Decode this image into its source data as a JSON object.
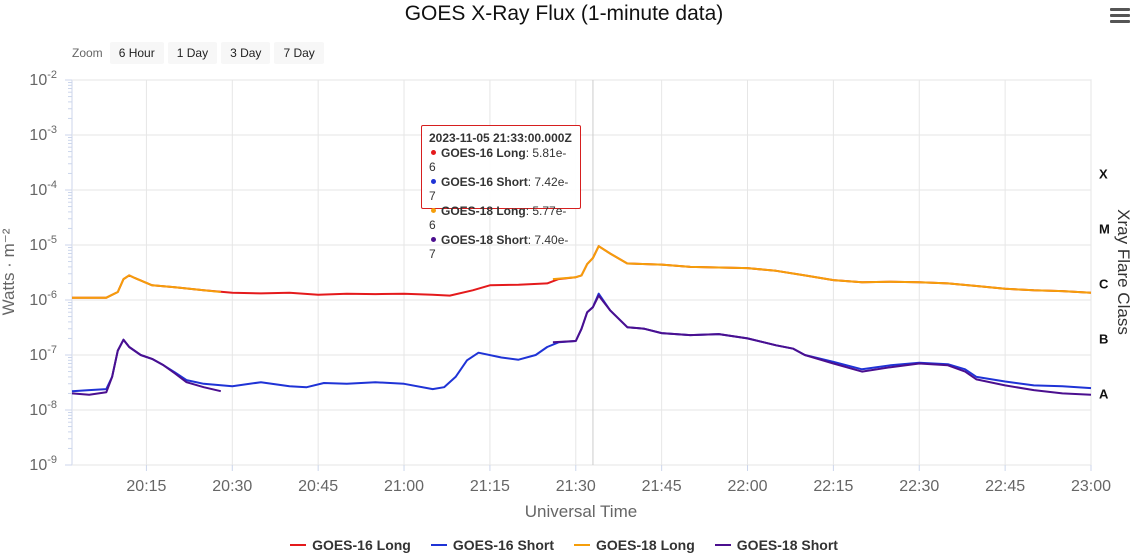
{
  "title": "GOES X-Ray Flux (1-minute data)",
  "menu_icon": "hamburger-menu-icon",
  "zoom": {
    "label": "Zoom",
    "buttons": [
      "6 Hour",
      "1 Day",
      "3 Day",
      "7 Day"
    ]
  },
  "tooltip": {
    "time": "2023-11-05 21:33:00.000Z",
    "rows": [
      {
        "series": "GOES-16 Long",
        "value": "5.81e-6",
        "color": "#e41a1c"
      },
      {
        "series": "GOES-16 Short",
        "value": "7.42e-7",
        "color": "#1f33d6"
      },
      {
        "series": "GOES-18 Long",
        "value": "5.77e-6",
        "color": "#f59e0b"
      },
      {
        "series": "GOES-18 Short",
        "value": "7.40e-7",
        "color": "#4b0f8f"
      }
    ]
  },
  "chart_data": {
    "type": "line",
    "title": "GOES X-Ray Flux (1-minute data)",
    "xlabel": "Universal Time",
    "ylabel": "Watts · m⁻²",
    "y2label": "Xray Flare Class",
    "yscale": "log",
    "ylim": [
      1e-09,
      0.01
    ],
    "xlim": [
      "20:02",
      "23:00"
    ],
    "x_ticks": [
      "20:15",
      "20:30",
      "20:45",
      "21:00",
      "21:15",
      "21:30",
      "21:45",
      "22:00",
      "22:15",
      "22:30",
      "22:45",
      "23:00"
    ],
    "y_ticks": [
      {
        "base": "10",
        "exp": "-9"
      },
      {
        "base": "10",
        "exp": "-8"
      },
      {
        "base": "10",
        "exp": "-7"
      },
      {
        "base": "10",
        "exp": "-6"
      },
      {
        "base": "10",
        "exp": "-5"
      },
      {
        "base": "10",
        "exp": "-4"
      },
      {
        "base": "10",
        "exp": "-3"
      },
      {
        "base": "10",
        "exp": "-2"
      }
    ],
    "flare_classes": [
      {
        "label": "A",
        "flux": 1e-08
      },
      {
        "label": "B",
        "flux": 1e-07
      },
      {
        "label": "C",
        "flux": 1e-06
      },
      {
        "label": "M",
        "flux": 1e-05
      },
      {
        "label": "X",
        "flux": 0.0001
      }
    ],
    "crosshair_x": "21:33",
    "series": [
      {
        "name": "GOES-16 Long",
        "color": "#e41a1c",
        "points": [
          [
            "20:02",
            1.1e-06
          ],
          [
            "20:08",
            1.1e-06
          ],
          [
            "20:10",
            1.4e-06
          ],
          [
            "20:11",
            2.4e-06
          ],
          [
            "20:12",
            2.8e-06
          ],
          [
            "20:13",
            2.5e-06
          ],
          [
            "20:16",
            1.85e-06
          ],
          [
            "20:20",
            1.7e-06
          ],
          [
            "20:25",
            1.5e-06
          ],
          [
            "20:30",
            1.35e-06
          ],
          [
            "20:35",
            1.32e-06
          ],
          [
            "20:40",
            1.35e-06
          ],
          [
            "20:45",
            1.25e-06
          ],
          [
            "20:50",
            1.3e-06
          ],
          [
            "20:55",
            1.28e-06
          ],
          [
            "21:00",
            1.3e-06
          ],
          [
            "21:05",
            1.25e-06
          ],
          [
            "21:08",
            1.2e-06
          ],
          [
            "21:12",
            1.5e-06
          ],
          [
            "21:15",
            1.85e-06
          ],
          [
            "21:20",
            1.9e-06
          ],
          [
            "21:25",
            2e-06
          ],
          [
            "21:27",
            2.4e-06
          ],
          [
            "21:30",
            2.6e-06
          ],
          [
            "21:31",
            2.8e-06
          ],
          [
            "21:32",
            4.5e-06
          ],
          [
            "21:33",
            5.81e-06
          ],
          [
            "21:34",
            9.5e-06
          ],
          [
            "21:36",
            7e-06
          ],
          [
            "21:39",
            4.6e-06
          ],
          [
            "21:45",
            4.4e-06
          ],
          [
            "21:50",
            4e-06
          ],
          [
            "21:55",
            3.9e-06
          ],
          [
            "22:00",
            3.8e-06
          ],
          [
            "22:05",
            3.4e-06
          ],
          [
            "22:10",
            2.8e-06
          ],
          [
            "22:15",
            2.3e-06
          ],
          [
            "22:20",
            2.1e-06
          ],
          [
            "22:25",
            2.15e-06
          ],
          [
            "22:30",
            2.1e-06
          ],
          [
            "22:35",
            2e-06
          ],
          [
            "22:40",
            1.8e-06
          ],
          [
            "22:45",
            1.6e-06
          ],
          [
            "22:50",
            1.5e-06
          ],
          [
            "22:55",
            1.45e-06
          ],
          [
            "23:00",
            1.35e-06
          ]
        ]
      },
      {
        "name": "GOES-16 Short",
        "color": "#1f33d6",
        "points": [
          [
            "20:02",
            2.2e-08
          ],
          [
            "20:05",
            2.3e-08
          ],
          [
            "20:08",
            2.4e-08
          ],
          [
            "20:09",
            4e-08
          ],
          [
            "20:10",
            1.2e-07
          ],
          [
            "20:11",
            1.9e-07
          ],
          [
            "20:12",
            1.4e-07
          ],
          [
            "20:14",
            1e-07
          ],
          [
            "20:16",
            8.5e-08
          ],
          [
            "20:18",
            6.5e-08
          ],
          [
            "20:20",
            4.8e-08
          ],
          [
            "20:22",
            3.5e-08
          ],
          [
            "20:25",
            3e-08
          ],
          [
            "20:30",
            2.7e-08
          ],
          [
            "20:35",
            3.2e-08
          ],
          [
            "20:40",
            2.7e-08
          ],
          [
            "20:43",
            2.6e-08
          ],
          [
            "20:46",
            3.1e-08
          ],
          [
            "20:50",
            3e-08
          ],
          [
            "20:55",
            3.2e-08
          ],
          [
            "21:00",
            3e-08
          ],
          [
            "21:05",
            2.4e-08
          ],
          [
            "21:07",
            2.6e-08
          ],
          [
            "21:09",
            4e-08
          ],
          [
            "21:11",
            8e-08
          ],
          [
            "21:13",
            1.1e-07
          ],
          [
            "21:17",
            9e-08
          ],
          [
            "21:20",
            8.2e-08
          ],
          [
            "21:23",
            1e-07
          ],
          [
            "21:25",
            1.4e-07
          ],
          [
            "21:27",
            1.7e-07
          ],
          [
            "21:30",
            1.8e-07
          ],
          [
            "21:31",
            3e-07
          ],
          [
            "21:32",
            6e-07
          ],
          [
            "21:33",
            7.42e-07
          ],
          [
            "21:34",
            1.3e-06
          ],
          [
            "21:36",
            6.5e-07
          ],
          [
            "21:39",
            3.2e-07
          ],
          [
            "21:42",
            3e-07
          ],
          [
            "21:45",
            2.5e-07
          ],
          [
            "21:50",
            2.3e-07
          ],
          [
            "21:55",
            2.4e-07
          ],
          [
            "22:00",
            2e-07
          ],
          [
            "22:05",
            1.5e-07
          ],
          [
            "22:08",
            1.3e-07
          ],
          [
            "22:10",
            1e-07
          ],
          [
            "22:15",
            7.5e-08
          ],
          [
            "22:20",
            5.5e-08
          ],
          [
            "22:25",
            6.5e-08
          ],
          [
            "22:30",
            7.2e-08
          ],
          [
            "22:35",
            6.8e-08
          ],
          [
            "22:38",
            5.5e-08
          ],
          [
            "22:40",
            4e-08
          ],
          [
            "22:45",
            3.3e-08
          ],
          [
            "22:50",
            2.8e-08
          ],
          [
            "22:55",
            2.7e-08
          ],
          [
            "23:00",
            2.5e-08
          ]
        ]
      },
      {
        "name": "GOES-18 Long",
        "color": "#f59e0b",
        "points": [
          [
            "20:02",
            1.1e-06
          ],
          [
            "20:08",
            1.1e-06
          ],
          [
            "20:10",
            1.4e-06
          ],
          [
            "20:11",
            2.4e-06
          ],
          [
            "20:12",
            2.8e-06
          ],
          [
            "20:13",
            2.5e-06
          ],
          [
            "20:16",
            1.85e-06
          ],
          [
            "20:20",
            1.7e-06
          ],
          [
            "20:25",
            1.5e-06
          ],
          [
            "20:28",
            1.4e-06
          ],
          [
            "21:26",
            2.4e-06
          ],
          [
            "21:30",
            2.6e-06
          ],
          [
            "21:31",
            2.8e-06
          ],
          [
            "21:32",
            4.5e-06
          ],
          [
            "21:33",
            5.77e-06
          ],
          [
            "21:34",
            9.5e-06
          ],
          [
            "21:36",
            7e-06
          ],
          [
            "21:39",
            4.6e-06
          ],
          [
            "21:45",
            4.4e-06
          ],
          [
            "21:50",
            4e-06
          ],
          [
            "21:55",
            3.9e-06
          ],
          [
            "22:00",
            3.8e-06
          ],
          [
            "22:05",
            3.4e-06
          ],
          [
            "22:10",
            2.8e-06
          ],
          [
            "22:15",
            2.3e-06
          ],
          [
            "22:20",
            2.1e-06
          ],
          [
            "22:25",
            2.15e-06
          ],
          [
            "22:30",
            2.1e-06
          ],
          [
            "22:35",
            2e-06
          ],
          [
            "22:40",
            1.8e-06
          ],
          [
            "22:45",
            1.6e-06
          ],
          [
            "22:50",
            1.5e-06
          ],
          [
            "22:55",
            1.45e-06
          ],
          [
            "23:00",
            1.35e-06
          ]
        ]
      },
      {
        "name": "GOES-18 Short",
        "color": "#4b0f8f",
        "points": [
          [
            "20:02",
            2e-08
          ],
          [
            "20:05",
            1.9e-08
          ],
          [
            "20:08",
            2.1e-08
          ],
          [
            "20:09",
            4e-08
          ],
          [
            "20:10",
            1.2e-07
          ],
          [
            "20:11",
            1.9e-07
          ],
          [
            "20:12",
            1.4e-07
          ],
          [
            "20:14",
            1e-07
          ],
          [
            "20:16",
            8.5e-08
          ],
          [
            "20:18",
            6.5e-08
          ],
          [
            "20:20",
            4.6e-08
          ],
          [
            "20:22",
            3.2e-08
          ],
          [
            "20:25",
            2.6e-08
          ],
          [
            "20:28",
            2.2e-08
          ],
          [
            "21:26",
            1.7e-07
          ],
          [
            "21:30",
            1.8e-07
          ],
          [
            "21:31",
            3e-07
          ],
          [
            "21:32",
            6e-07
          ],
          [
            "21:33",
            7.4e-07
          ],
          [
            "21:34",
            1.2e-06
          ],
          [
            "21:36",
            6.5e-07
          ],
          [
            "21:39",
            3.2e-07
          ],
          [
            "21:42",
            3e-07
          ],
          [
            "21:45",
            2.5e-07
          ],
          [
            "21:50",
            2.3e-07
          ],
          [
            "21:55",
            2.4e-07
          ],
          [
            "22:00",
            2e-07
          ],
          [
            "22:05",
            1.5e-07
          ],
          [
            "22:08",
            1.3e-07
          ],
          [
            "22:10",
            1e-07
          ],
          [
            "22:15",
            7e-08
          ],
          [
            "22:20",
            5e-08
          ],
          [
            "22:25",
            6e-08
          ],
          [
            "22:30",
            7e-08
          ],
          [
            "22:35",
            6.5e-08
          ],
          [
            "22:38",
            5e-08
          ],
          [
            "22:40",
            3.6e-08
          ],
          [
            "22:45",
            2.8e-08
          ],
          [
            "22:50",
            2.3e-08
          ],
          [
            "22:55",
            2e-08
          ],
          [
            "23:00",
            1.9e-08
          ]
        ]
      }
    ]
  }
}
